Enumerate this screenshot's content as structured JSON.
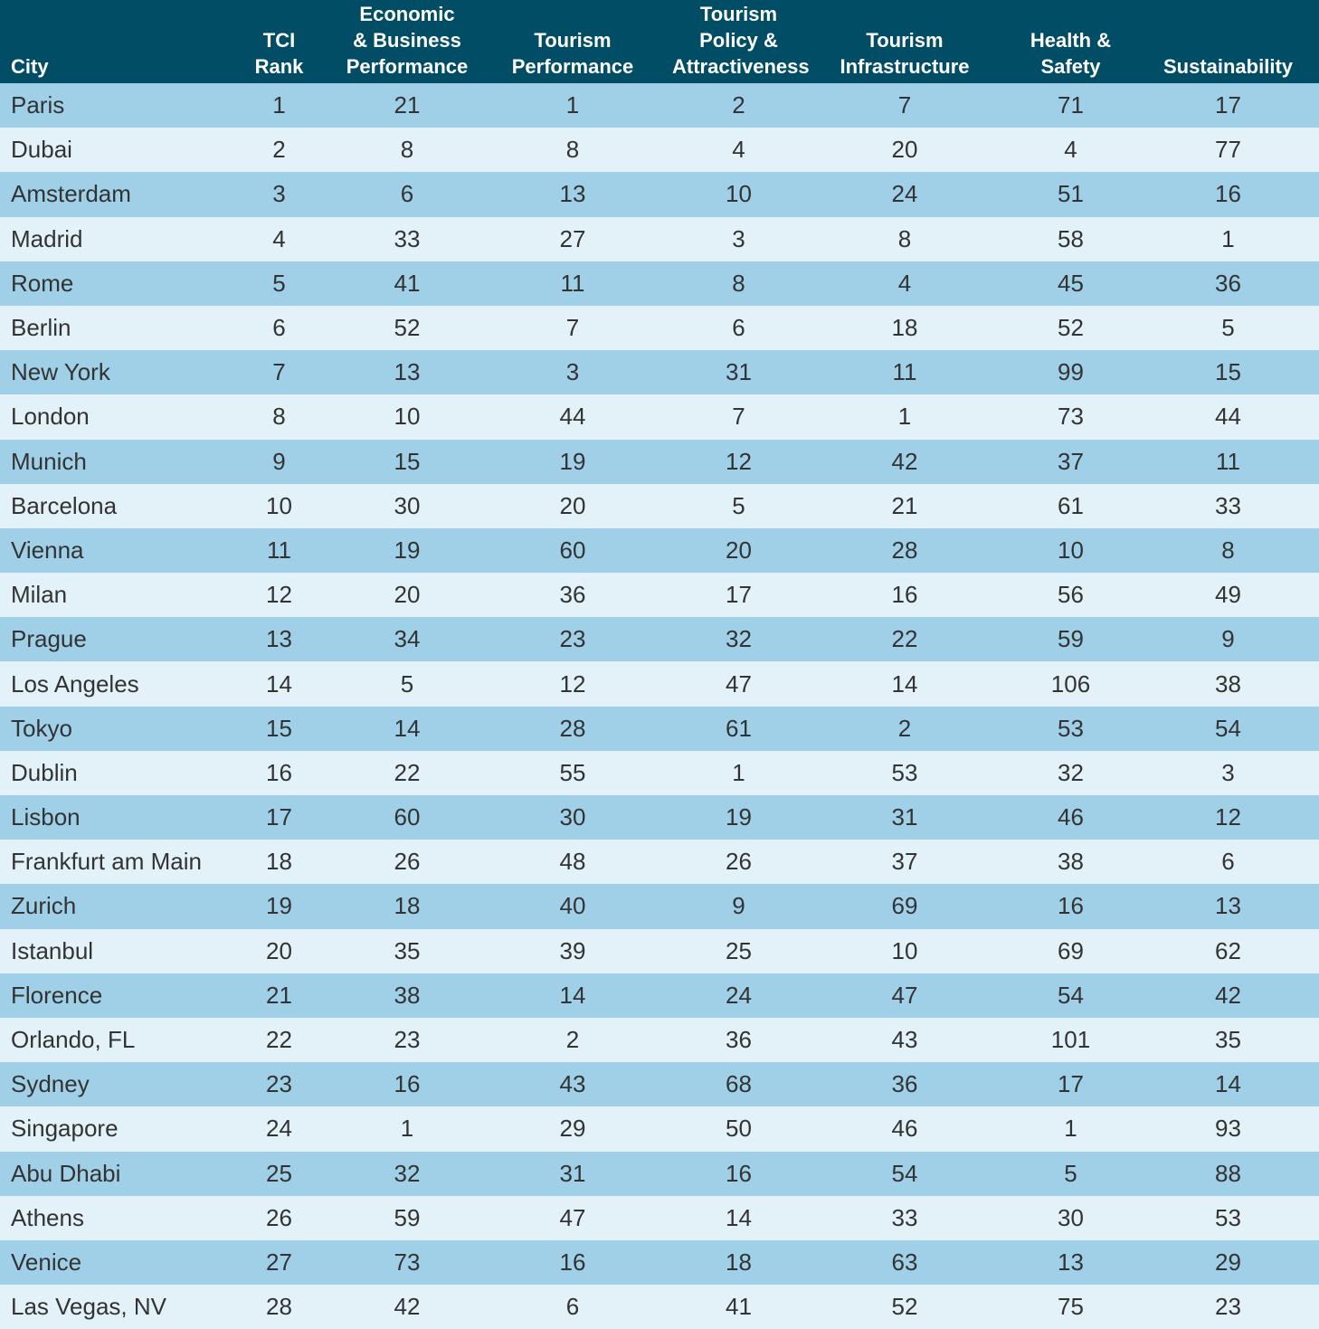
{
  "table": {
    "headers": [
      "City",
      "TCI\nRank",
      "Economic\n& Business\nPerformance",
      "Tourism\nPerformance",
      "Tourism\nPolicy &\nAttractiveness",
      "Tourism\nInfrastructure",
      "Health & Safety",
      "Sustainability"
    ],
    "rows": [
      [
        "Paris",
        "1",
        "21",
        "1",
        "2",
        "7",
        "71",
        "17"
      ],
      [
        "Dubai",
        "2",
        "8",
        "8",
        "4",
        "20",
        "4",
        "77"
      ],
      [
        "Amsterdam",
        "3",
        "6",
        "13",
        "10",
        "24",
        "51",
        "16"
      ],
      [
        "Madrid",
        "4",
        "33",
        "27",
        "3",
        "8",
        "58",
        "1"
      ],
      [
        "Rome",
        "5",
        "41",
        "11",
        "8",
        "4",
        "45",
        "36"
      ],
      [
        "Berlin",
        "6",
        "52",
        "7",
        "6",
        "18",
        "52",
        "5"
      ],
      [
        "New York",
        "7",
        "13",
        "3",
        "31",
        "11",
        "99",
        "15"
      ],
      [
        "London",
        "8",
        "10",
        "44",
        "7",
        "1",
        "73",
        "44"
      ],
      [
        "Munich",
        "9",
        "15",
        "19",
        "12",
        "42",
        "37",
        "11"
      ],
      [
        "Barcelona",
        "10",
        "30",
        "20",
        "5",
        "21",
        "61",
        "33"
      ],
      [
        "Vienna",
        "11",
        "19",
        "60",
        "20",
        "28",
        "10",
        "8"
      ],
      [
        "Milan",
        "12",
        "20",
        "36",
        "17",
        "16",
        "56",
        "49"
      ],
      [
        "Prague",
        "13",
        "34",
        "23",
        "32",
        "22",
        "59",
        "9"
      ],
      [
        "Los Angeles",
        "14",
        "5",
        "12",
        "47",
        "14",
        "106",
        "38"
      ],
      [
        "Tokyo",
        "15",
        "14",
        "28",
        "61",
        "2",
        "53",
        "54"
      ],
      [
        "Dublin",
        "16",
        "22",
        "55",
        "1",
        "53",
        "32",
        "3"
      ],
      [
        "Lisbon",
        "17",
        "60",
        "30",
        "19",
        "31",
        "46",
        "12"
      ],
      [
        "Frankfurt am Main",
        "18",
        "26",
        "48",
        "26",
        "37",
        "38",
        "6"
      ],
      [
        "Zurich",
        "19",
        "18",
        "40",
        "9",
        "69",
        "16",
        "13"
      ],
      [
        "Istanbul",
        "20",
        "35",
        "39",
        "25",
        "10",
        "69",
        "62"
      ],
      [
        "Florence",
        "21",
        "38",
        "14",
        "24",
        "47",
        "54",
        "42"
      ],
      [
        "Orlando, FL",
        "22",
        "23",
        "2",
        "36",
        "43",
        "101",
        "35"
      ],
      [
        "Sydney",
        "23",
        "16",
        "43",
        "68",
        "36",
        "17",
        "14"
      ],
      [
        "Singapore",
        "24",
        "1",
        "29",
        "50",
        "46",
        "1",
        "93"
      ],
      [
        "Abu Dhabi",
        "25",
        "32",
        "31",
        "16",
        "54",
        "5",
        "88"
      ],
      [
        "Athens",
        "26",
        "59",
        "47",
        "14",
        "33",
        "30",
        "53"
      ],
      [
        "Venice",
        "27",
        "73",
        "16",
        "18",
        "63",
        "13",
        "29"
      ],
      [
        "Las Vegas, NV",
        "28",
        "42",
        "6",
        "41",
        "52",
        "75",
        "23"
      ]
    ]
  },
  "colors": {
    "header_bg": "#004d65",
    "row_dark": "#9fd0e7",
    "row_light": "#e3f2f8"
  }
}
